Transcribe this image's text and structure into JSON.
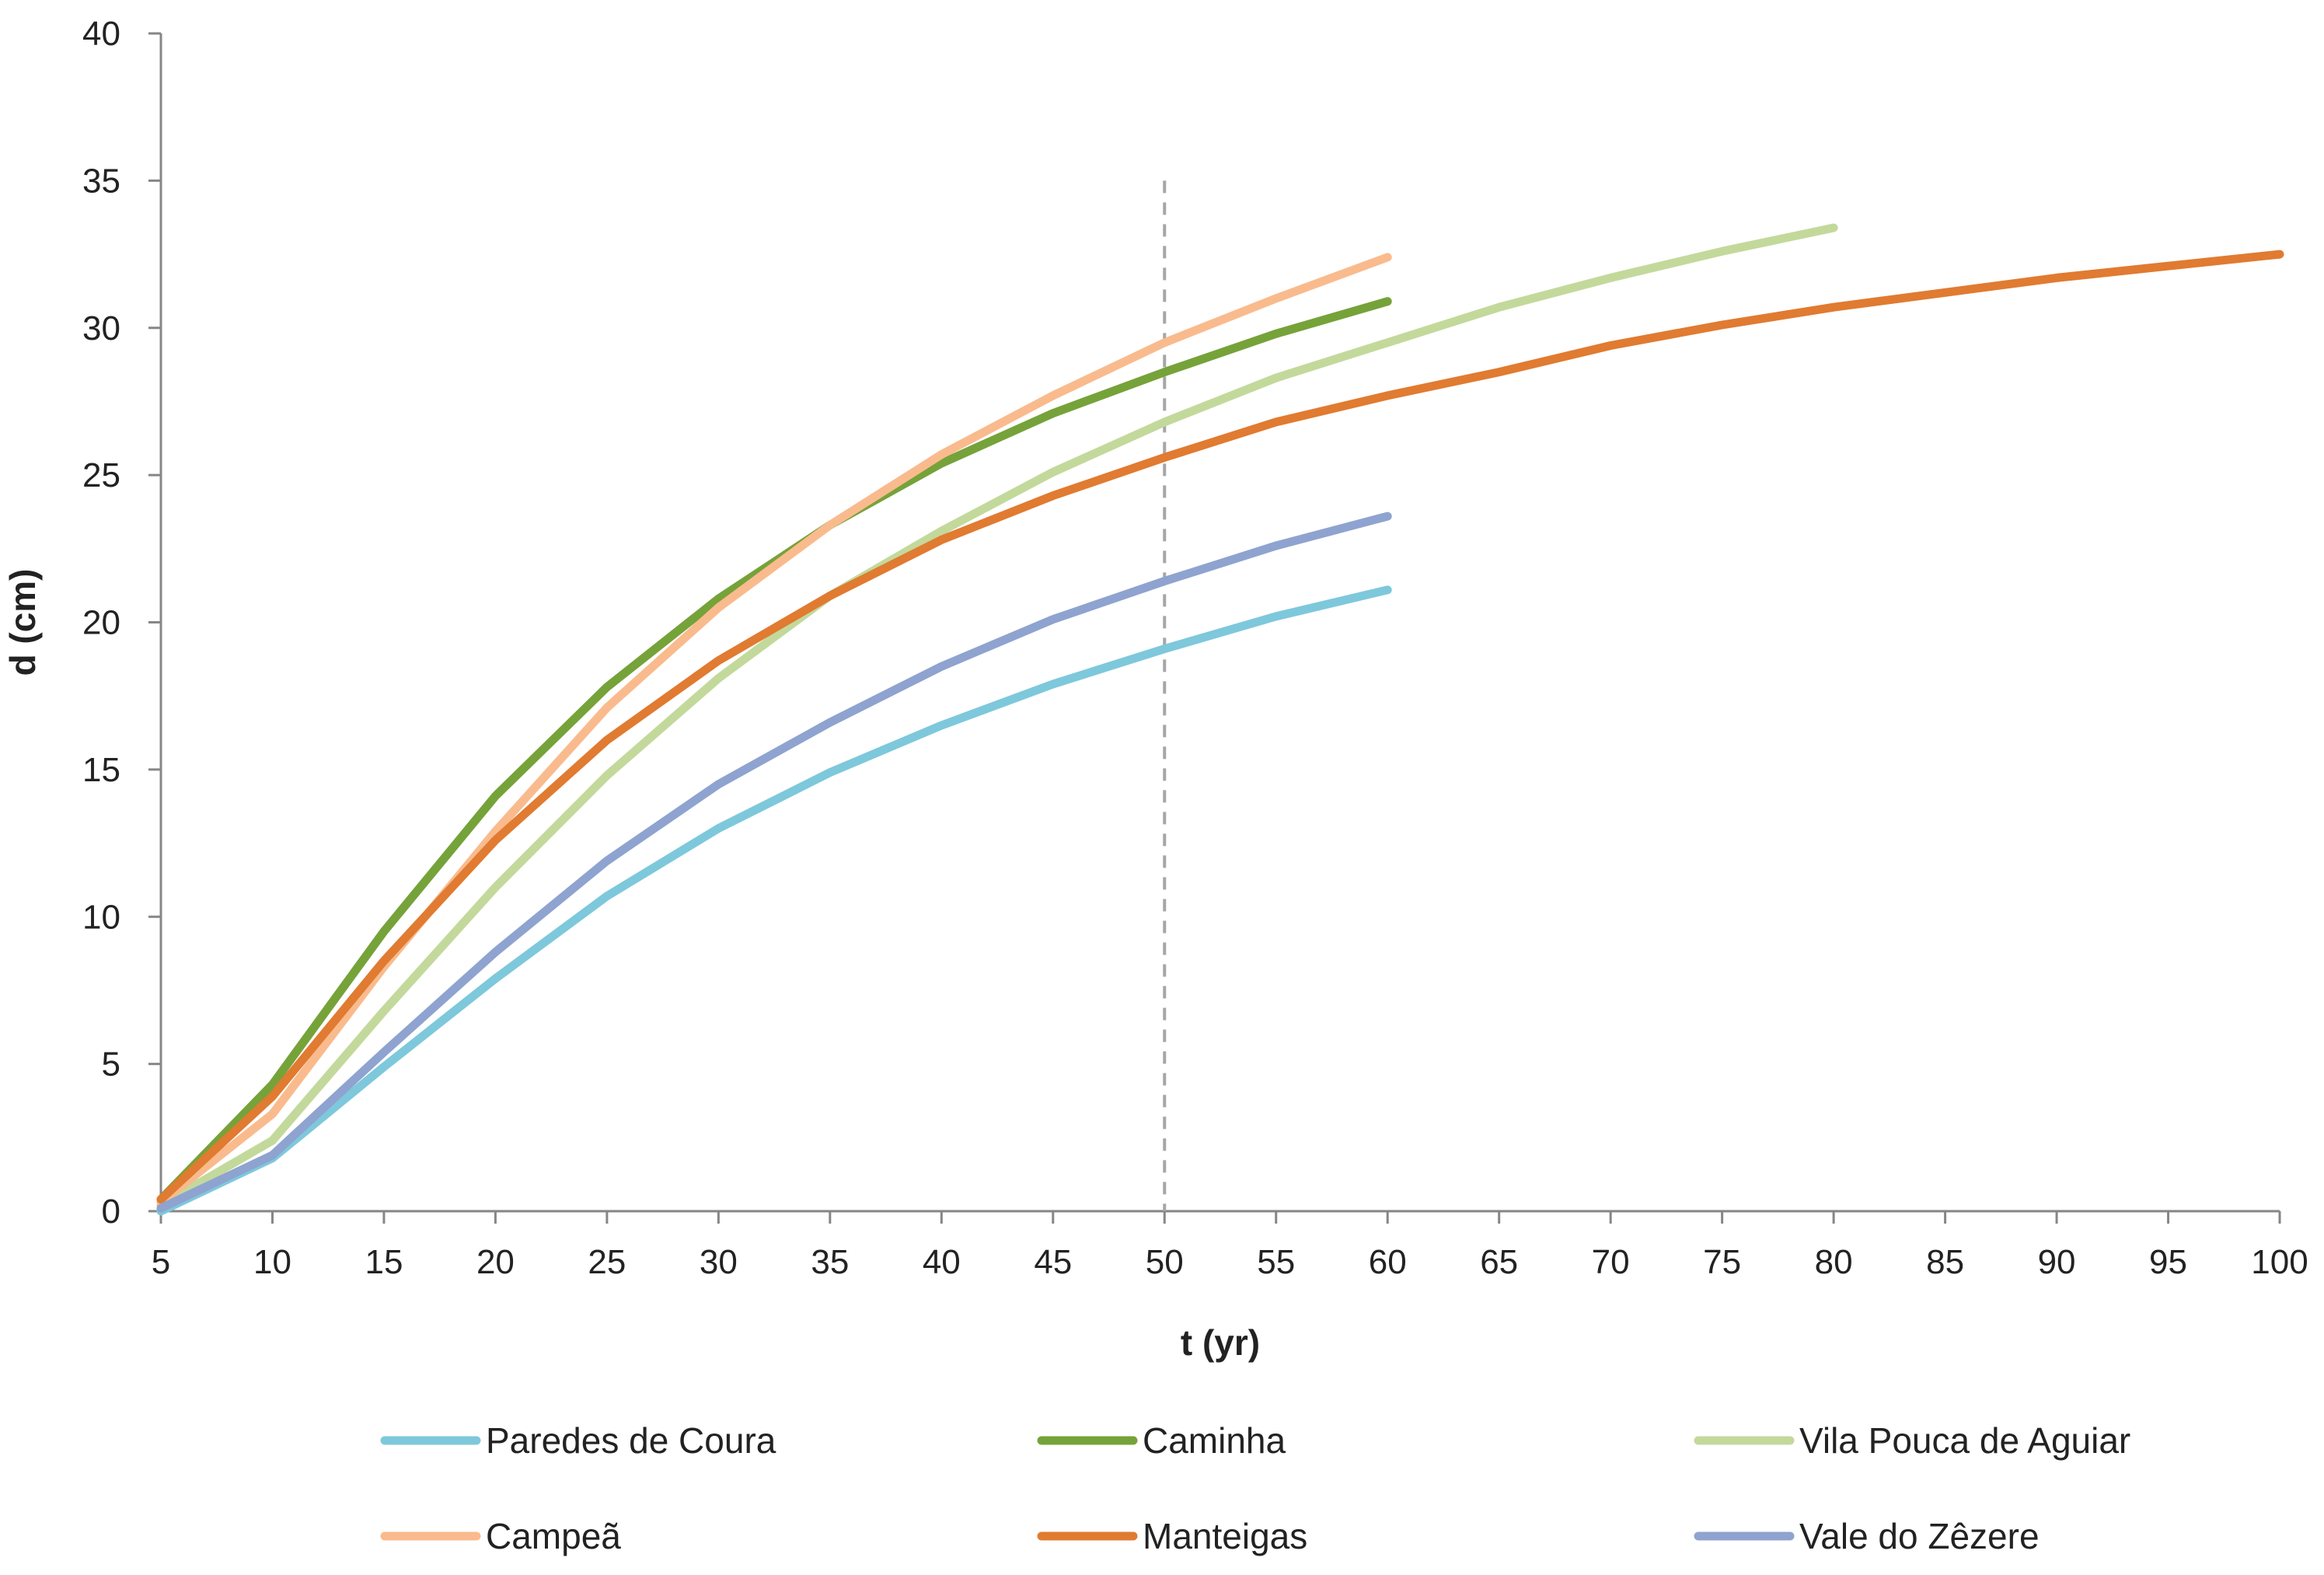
{
  "chart_data": {
    "type": "line",
    "title": "",
    "xlabel": "t (yr)",
    "ylabel": "d (cm)",
    "xlim": [
      5,
      100
    ],
    "ylim": [
      0,
      40
    ],
    "x_ticks": [
      5,
      10,
      15,
      20,
      25,
      30,
      35,
      40,
      45,
      50,
      55,
      60,
      65,
      70,
      75,
      80,
      85,
      90,
      95,
      100
    ],
    "y_ticks": [
      0,
      5,
      10,
      15,
      20,
      25,
      30,
      35,
      40
    ],
    "grid": false,
    "legend_position": "bottom",
    "reference_line": {
      "x": 50,
      "y_range": [
        0,
        35
      ],
      "style": "dashed",
      "color": "#a6a6a6"
    },
    "series": [
      {
        "name": "Paredes de Coura",
        "color": "#7ec8dc",
        "x": [
          5,
          10,
          15,
          20,
          25,
          30,
          35,
          40,
          45,
          50,
          55,
          60
        ],
        "values": [
          0,
          1.8,
          4.9,
          7.9,
          10.7,
          13.0,
          14.9,
          16.5,
          17.9,
          19.1,
          20.2,
          21.1
        ]
      },
      {
        "name": "Caminha",
        "color": "#76a23a",
        "x": [
          5,
          10,
          15,
          20,
          25,
          30,
          35,
          40,
          45,
          50,
          55,
          60
        ],
        "values": [
          0.4,
          4.3,
          9.5,
          14.1,
          17.8,
          20.8,
          23.3,
          25.4,
          27.1,
          28.5,
          29.8,
          30.9
        ]
      },
      {
        "name": "Vila Pouca de Aguiar",
        "color": "#c3d99b",
        "x": [
          5,
          10,
          15,
          20,
          25,
          30,
          35,
          40,
          45,
          50,
          55,
          60,
          65,
          70,
          75,
          80
        ],
        "values": [
          0.2,
          2.4,
          6.8,
          11.0,
          14.8,
          18.1,
          20.9,
          23.1,
          25.1,
          26.8,
          28.3,
          29.5,
          30.7,
          31.7,
          32.6,
          33.4
        ]
      },
      {
        "name": "Campeã",
        "color": "#f9bb8d",
        "x": [
          5,
          10,
          15,
          20,
          25,
          30,
          35,
          40,
          45,
          50,
          55,
          60
        ],
        "values": [
          0.3,
          3.3,
          8.3,
          12.9,
          17.1,
          20.5,
          23.3,
          25.7,
          27.7,
          29.5,
          31.0,
          32.4
        ]
      },
      {
        "name": "Manteigas",
        "color": "#e07b31",
        "x": [
          5,
          10,
          15,
          20,
          25,
          30,
          35,
          40,
          45,
          50,
          55,
          60,
          65,
          70,
          75,
          80,
          85,
          90,
          95,
          100
        ],
        "values": [
          0.4,
          3.9,
          8.5,
          12.6,
          16.0,
          18.7,
          20.9,
          22.8,
          24.3,
          25.6,
          26.8,
          27.7,
          28.5,
          29.4,
          30.1,
          30.7,
          31.2,
          31.7,
          32.1,
          32.5
        ]
      },
      {
        "name": "Vale do Zêzere",
        "color": "#8ea3cf",
        "x": [
          5,
          10,
          15,
          20,
          25,
          30,
          35,
          40,
          45,
          50,
          55,
          60
        ],
        "values": [
          0.1,
          1.9,
          5.4,
          8.8,
          11.9,
          14.5,
          16.6,
          18.5,
          20.1,
          21.4,
          22.6,
          23.6
        ]
      }
    ]
  }
}
